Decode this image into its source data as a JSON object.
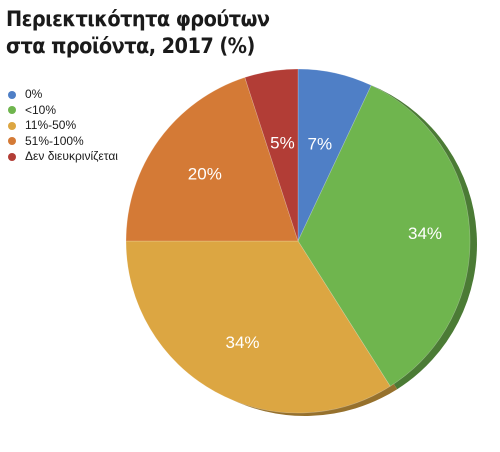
{
  "chart_data": {
    "type": "pie",
    "title": "Περιεκτικότητα φρούτων στα προϊόντα, 2017 (%)",
    "title_lines": [
      "Περιεκτικότητα φρούτων",
      "στα προϊόντα, 2017 (%)"
    ],
    "legend_position": "top-left",
    "slices": [
      {
        "label": "0%",
        "value": 7,
        "display": "7%",
        "color": "#4f7fc6"
      },
      {
        "label": "<10%",
        "value": 34,
        "display": "34%",
        "color": "#6fb54e"
      },
      {
        "label": "11%-50%",
        "value": 34,
        "display": "34%",
        "color": "#dca642"
      },
      {
        "label": "51%-100%",
        "value": 20,
        "display": "20%",
        "color": "#d47a36"
      },
      {
        "label": "Δεν διευκρινίζεται",
        "value": 5,
        "display": "5%",
        "color": "#b23d36"
      }
    ]
  }
}
